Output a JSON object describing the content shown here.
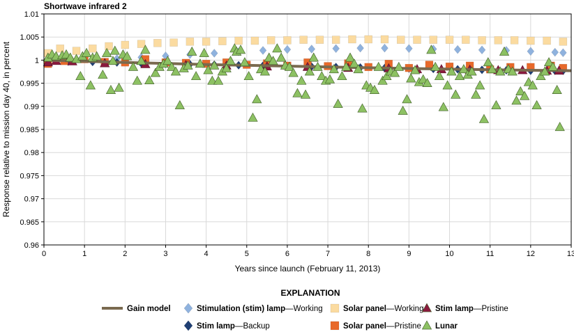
{
  "chart_data": {
    "type": "scatter",
    "title": "Shortwave infrared 2",
    "xlabel": "Years since launch (February 11, 2013)",
    "ylabel": "Response relative to mission day 40, in percent",
    "xlim": [
      0,
      13
    ],
    "ylim": [
      0.96,
      1.01
    ],
    "xticks": [
      0,
      1,
      2,
      3,
      4,
      5,
      6,
      7,
      8,
      9,
      10,
      11,
      12,
      13
    ],
    "yticks": [
      0.96,
      0.965,
      0.97,
      0.975,
      0.98,
      0.985,
      0.99,
      0.995,
      1,
      1.005,
      1.01
    ],
    "grid": true,
    "legend_title": "EXPLANATION",
    "legend": [
      {
        "key": "gain",
        "marker": "line",
        "color": "#7a6a4f",
        "bold": "Gain model",
        "rest": ""
      },
      {
        "key": "stim_working",
        "marker": "diamond",
        "color": "#8fb2de",
        "bold": "Stimulation (stim) lamp",
        "rest": "—Working"
      },
      {
        "key": "solar_working",
        "marker": "square",
        "color": "#fbdba0",
        "bold": "Solar panel",
        "rest": "—Working"
      },
      {
        "key": "stim_pristine",
        "marker": "triangle",
        "color": "#8b1a3e",
        "bold": "Stim lamp",
        "rest": "—Pristine"
      },
      {
        "key": "stim_backup",
        "marker": "diamond",
        "color": "#1f3f73",
        "bold": "Stim lamp",
        "rest": "—Backup"
      },
      {
        "key": "solar_pristine",
        "marker": "square",
        "color": "#e8692a",
        "bold": "Solar panel",
        "rest": "—Pristine"
      },
      {
        "key": "lunar",
        "marker": "triangle",
        "color": "#8dc163",
        "bold": "Lunar",
        "rest": ""
      }
    ],
    "series": [
      {
        "key": "gain",
        "x": [
          0,
          2,
          4,
          6,
          8,
          10,
          12,
          13
        ],
        "y": [
          1.0,
          0.9995,
          0.99905,
          0.9987,
          0.99835,
          0.99805,
          0.9978,
          0.9977
        ]
      },
      {
        "key": "solar_working",
        "x": [
          0.1,
          0.4,
          0.8,
          1.2,
          1.6,
          2.0,
          2.4,
          2.8,
          3.2,
          3.6,
          4.0,
          4.4,
          4.8,
          5.2,
          5.6,
          6.0,
          6.4,
          6.8,
          7.2,
          7.6,
          8.0,
          8.4,
          8.8,
          9.2,
          9.6,
          10.0,
          10.4,
          10.8,
          11.2,
          11.6,
          12.0,
          12.4,
          12.8
        ],
        "y": [
          1.0015,
          1.0025,
          1.002,
          1.0025,
          1.003,
          1.0033,
          1.0035,
          1.0037,
          1.0038,
          1.004,
          1.004,
          1.0041,
          1.0042,
          1.0042,
          1.0043,
          1.0043,
          1.0044,
          1.0044,
          1.0044,
          1.0045,
          1.0045,
          1.0045,
          1.0044,
          1.0044,
          1.0044,
          1.0044,
          1.0044,
          1.0043,
          1.0043,
          1.0043,
          1.0042,
          1.0042,
          1.004
        ]
      },
      {
        "key": "stim_working",
        "x": [
          0.1,
          0.6,
          1.2,
          1.8,
          2.4,
          3.0,
          3.6,
          4.2,
          4.8,
          5.4,
          6.0,
          6.6,
          7.2,
          7.8,
          8.4,
          9.0,
          9.6,
          10.2,
          10.8,
          11.4,
          12.0,
          12.6,
          12.8
        ],
        "y": [
          1.0,
          1.0,
          1.0001,
          1.0003,
          1.0006,
          1.0009,
          1.0012,
          1.0015,
          1.0018,
          1.0021,
          1.0023,
          1.0024,
          1.0025,
          1.0026,
          1.0026,
          1.0025,
          1.0024,
          1.0023,
          1.0022,
          1.0021,
          1.0019,
          1.0017,
          1.0016
        ]
      },
      {
        "key": "stim_backup",
        "x": [
          0.1,
          0.6,
          1.2,
          1.8,
          2.4,
          3.0,
          3.6,
          4.2,
          4.8,
          5.4,
          6.0,
          6.6,
          7.2,
          7.8,
          8.4,
          9.0,
          9.6,
          10.2,
          10.8,
          11.4,
          12.0,
          12.6,
          12.8
        ],
        "y": [
          0.9998,
          0.9997,
          0.9996,
          0.9995,
          0.9993,
          0.9992,
          0.9991,
          0.999,
          0.9989,
          0.9988,
          0.9987,
          0.9986,
          0.9985,
          0.9984,
          0.9983,
          0.9982,
          0.9981,
          0.998,
          0.9979,
          0.9978,
          0.9977,
          0.9977,
          0.9977
        ]
      },
      {
        "key": "solar_pristine",
        "x": [
          0.1,
          0.5,
          1.0,
          1.5,
          2.0,
          2.5,
          3.0,
          3.5,
          4.0,
          4.5,
          5.0,
          5.5,
          6.0,
          6.5,
          7.0,
          7.5,
          8.0,
          8.5,
          9.0,
          9.5,
          10.0,
          10.5,
          11.0,
          11.5,
          12.0,
          12.5,
          12.8
        ],
        "y": [
          0.9992,
          0.9998,
          1.0002,
          0.9996,
          0.9995,
          1.0002,
          0.9995,
          0.9994,
          0.9992,
          0.9995,
          0.999,
          0.9993,
          0.9988,
          0.9995,
          0.9987,
          0.9993,
          0.9985,
          0.9992,
          0.9983,
          0.999,
          0.9986,
          0.9988,
          0.998,
          0.9985,
          0.9985,
          0.9988,
          0.9983
        ]
      },
      {
        "key": "stim_pristine",
        "x": [
          0.1,
          0.3,
          0.7,
          1.5,
          2.5,
          3.5,
          4.5,
          5.5,
          6.5,
          7.5,
          8.5,
          9.2,
          9.8,
          10.5,
          11.2,
          11.8,
          12.4,
          12.7
        ],
        "y": [
          0.9995,
          0.9998,
          0.9997,
          0.9993,
          0.9991,
          0.9989,
          0.9988,
          0.9986,
          0.9985,
          0.9983,
          0.9982,
          0.998,
          0.998,
          0.9979,
          0.9978,
          0.9978,
          0.9977,
          0.9977
        ]
      },
      {
        "key": "lunar",
        "x": [
          0.1,
          0.2,
          0.3,
          0.45,
          0.55,
          0.65,
          0.8,
          0.9,
          0.95,
          1.05,
          1.15,
          1.2,
          1.3,
          1.45,
          1.55,
          1.65,
          1.7,
          1.75,
          1.85,
          1.95,
          2.05,
          2.2,
          2.3,
          2.4,
          2.5,
          2.6,
          2.75,
          2.85,
          2.95,
          3.05,
          3.15,
          3.25,
          3.35,
          3.45,
          3.55,
          3.65,
          3.75,
          3.85,
          3.95,
          4.05,
          4.15,
          4.2,
          4.3,
          4.4,
          4.5,
          4.6,
          4.7,
          4.75,
          4.85,
          4.95,
          5.05,
          5.15,
          5.25,
          5.35,
          5.45,
          5.55,
          5.65,
          5.75,
          5.85,
          5.95,
          6.05,
          6.15,
          6.25,
          6.35,
          6.45,
          6.55,
          6.65,
          6.75,
          6.85,
          6.95,
          7.05,
          7.15,
          7.25,
          7.35,
          7.45,
          7.55,
          7.65,
          7.75,
          7.85,
          7.95,
          8.05,
          8.15,
          8.25,
          8.35,
          8.45,
          8.55,
          8.65,
          8.75,
          8.85,
          8.95,
          9.05,
          9.15,
          9.25,
          9.35,
          9.45,
          9.55,
          9.65,
          9.75,
          9.85,
          9.95,
          10.05,
          10.15,
          10.25,
          10.35,
          10.45,
          10.55,
          10.65,
          10.75,
          10.85,
          10.95,
          11.05,
          11.15,
          11.25,
          11.35,
          11.45,
          11.55,
          11.65,
          11.75,
          11.85,
          11.95,
          12.05,
          12.15,
          12.25,
          12.35,
          12.45,
          12.55,
          12.65,
          12.72
        ],
        "y": [
          1.0005,
          1.0012,
          1.0008,
          1.001,
          1.0012,
          1.0005,
          1.0002,
          0.9965,
          1.0008,
          1.0015,
          0.9945,
          1.0005,
          1.0008,
          0.9968,
          1.0015,
          0.9935,
          0.9998,
          1.002,
          0.994,
          1.0012,
          1.0008,
          0.9985,
          0.9955,
          0.9998,
          1.0022,
          0.9956,
          0.9972,
          0.9985,
          0.9992,
          0.9998,
          0.9985,
          0.9975,
          0.9902,
          0.9982,
          0.9988,
          1.0018,
          0.9965,
          0.9992,
          1.0015,
          0.9978,
          0.9955,
          0.9988,
          0.9955,
          0.9975,
          0.9982,
          0.9998,
          1.0025,
          1.0018,
          1.0022,
          0.9995,
          0.9965,
          0.9875,
          0.9915,
          0.998,
          0.9975,
          1.0005,
          0.9998,
          1.0025,
          1.0005,
          0.9988,
          0.9985,
          0.9972,
          0.9928,
          0.9955,
          0.9925,
          0.9975,
          1.0005,
          0.9985,
          0.9965,
          0.9955,
          0.9958,
          0.998,
          0.9905,
          0.9965,
          0.9985,
          1.0005,
          0.9992,
          0.998,
          0.9895,
          0.9945,
          0.994,
          0.9935,
          0.9985,
          0.9955,
          0.9965,
          0.9975,
          0.9972,
          0.9985,
          0.989,
          0.9915,
          0.996,
          0.9978,
          0.9952,
          0.9958,
          0.995,
          1.0022,
          0.9985,
          0.9965,
          0.9898,
          0.9945,
          0.9975,
          0.9925,
          0.9965,
          0.998,
          0.9968,
          0.9975,
          0.9925,
          0.9945,
          0.9872,
          0.9995,
          0.998,
          0.9902,
          0.9975,
          1.0018,
          0.998,
          0.9975,
          0.9912,
          0.9932,
          0.9922,
          0.9952,
          0.9945,
          0.9902,
          0.9965,
          0.9975,
          0.9995,
          0.9985,
          0.9935,
          0.9855
        ]
      }
    ]
  }
}
